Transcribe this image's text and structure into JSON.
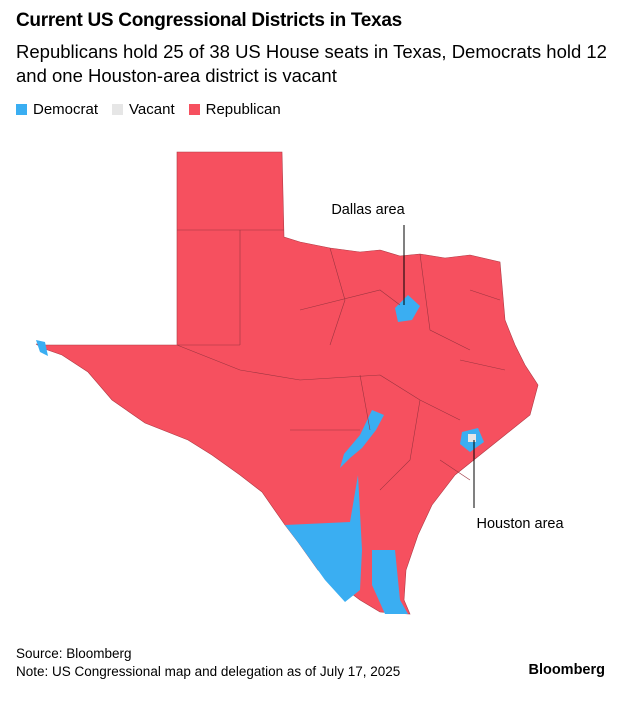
{
  "title": "Current US Congressional Districts in Texas",
  "subtitle": "Republicans hold 25 of 38 US House seats in Texas, Democrats hold 12 and one Houston-area district is vacant",
  "legend": [
    {
      "label": "Democrat",
      "color": "#3aaef2"
    },
    {
      "label": "Vacant",
      "color": "#e6e6e6"
    },
    {
      "label": "Republican",
      "color": "#f6505f"
    }
  ],
  "annotations": [
    "Dallas area",
    "Houston area"
  ],
  "source": "Source: Bloomberg",
  "note": "Note: US Congressional map and delegation as of July 17, 2025",
  "brand": "Bloomberg"
}
